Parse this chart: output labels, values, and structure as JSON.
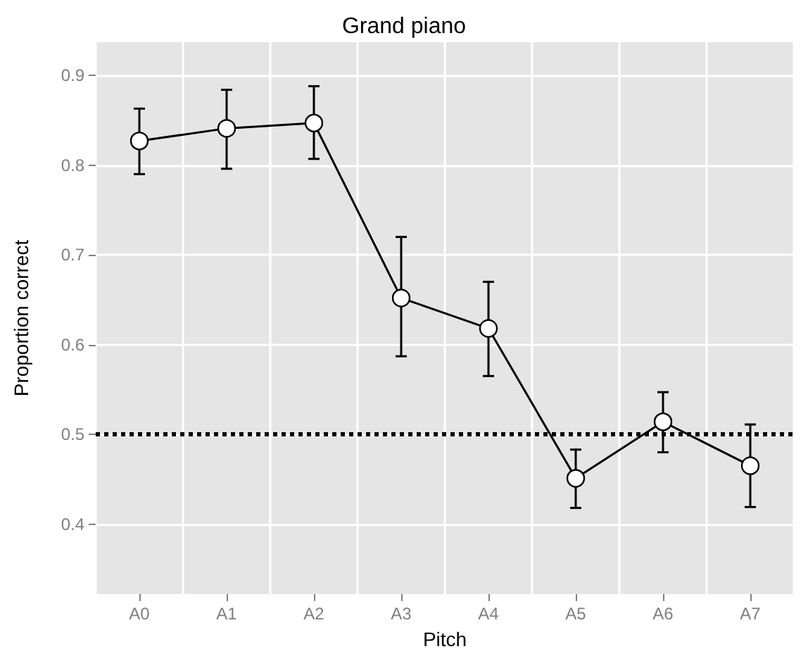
{
  "chart_data": {
    "type": "line",
    "title": "Grand piano",
    "xlabel": "Pitch",
    "ylabel": "Proportion correct",
    "categories": [
      "A0",
      "A1",
      "A2",
      "A3",
      "A4",
      "A5",
      "A6",
      "A7"
    ],
    "series": [
      {
        "color": "#000000",
        "values": [
          0.827,
          0.841,
          0.847,
          0.652,
          0.618,
          0.451,
          0.514,
          0.465
        ],
        "errors": [
          [
            0.79,
            0.863
          ],
          [
            0.796,
            0.884
          ],
          [
            0.807,
            0.888
          ],
          [
            0.587,
            0.72
          ],
          [
            0.565,
            0.67
          ],
          [
            0.418,
            0.483
          ],
          [
            0.48,
            0.547
          ],
          [
            0.419,
            0.511
          ]
        ]
      }
    ],
    "ylim": [
      0.322,
      0.937
    ],
    "yticks": [
      0.4,
      0.5,
      0.6,
      0.7,
      0.8,
      0.9
    ],
    "ref_lines": [
      {
        "axis": "y",
        "value": 0.5,
        "line_style": "dotted",
        "color": "#000000"
      }
    ],
    "grid": true,
    "marker": "circle",
    "line_style": "solid"
  }
}
